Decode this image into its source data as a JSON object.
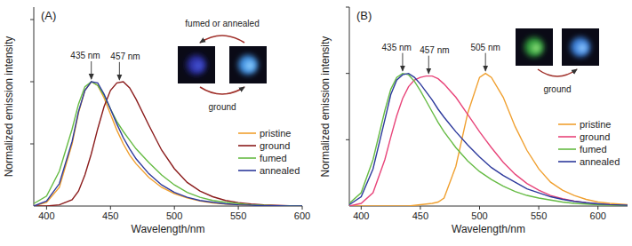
{
  "chart_data": [
    {
      "type": "line",
      "title": "(A)",
      "x_label": "Wavelength/nm",
      "y_label": "Normalized emission intensity",
      "x": [
        390,
        400,
        410,
        420,
        425,
        430,
        435,
        440,
        445,
        450,
        455,
        460,
        465,
        470,
        480,
        490,
        500,
        510,
        520,
        530,
        540,
        550,
        560,
        570,
        580,
        590,
        600
      ],
      "series": [
        {
          "name": "pristine",
          "color": "#f0a030",
          "values": [
            0.0,
            0.03,
            0.15,
            0.5,
            0.75,
            0.93,
            1.0,
            0.97,
            0.87,
            0.74,
            0.61,
            0.5,
            0.41,
            0.34,
            0.23,
            0.15,
            0.1,
            0.065,
            0.04,
            0.025,
            0.015,
            0.01,
            0.005,
            0.003,
            0.002,
            0.001,
            0.0
          ]
        },
        {
          "name": "ground",
          "color": "#8b1c1c",
          "values": [
            0.0,
            0.0,
            0.01,
            0.05,
            0.12,
            0.25,
            0.42,
            0.62,
            0.8,
            0.93,
            0.99,
            1.0,
            0.95,
            0.86,
            0.65,
            0.45,
            0.3,
            0.19,
            0.12,
            0.075,
            0.045,
            0.028,
            0.017,
            0.01,
            0.006,
            0.003,
            0.002
          ]
        },
        {
          "name": "fumed",
          "color": "#66bb44",
          "values": [
            0.02,
            0.08,
            0.28,
            0.62,
            0.82,
            0.96,
            1.0,
            0.97,
            0.89,
            0.78,
            0.68,
            0.6,
            0.53,
            0.46,
            0.35,
            0.25,
            0.17,
            0.11,
            0.07,
            0.045,
            0.03,
            0.02,
            0.01,
            0.006,
            0.003,
            0.002,
            0.001
          ]
        },
        {
          "name": "annealed",
          "color": "#2d3a9c",
          "values": [
            0.0,
            0.04,
            0.18,
            0.52,
            0.76,
            0.93,
            1.0,
            0.99,
            0.9,
            0.78,
            0.66,
            0.55,
            0.46,
            0.38,
            0.26,
            0.17,
            0.11,
            0.07,
            0.045,
            0.03,
            0.018,
            0.01,
            0.006,
            0.003,
            0.002,
            0.001,
            0.0
          ]
        }
      ],
      "xlim": [
        390,
        600
      ],
      "xticks": [
        400,
        450,
        500,
        550,
        600
      ],
      "ylim": [
        0,
        1.6
      ],
      "yticks": [
        0.5,
        1.0,
        1.5
      ],
      "tick_labels": "x",
      "legend": "right",
      "annotations": [
        {
          "text": "435 nm",
          "x": 435
        },
        {
          "text": "457 nm",
          "x": 457
        }
      ],
      "inset_labels": [
        "fumed or annealed",
        "ground"
      ]
    },
    {
      "type": "line",
      "title": "(B)",
      "x_label": "Wavelength/nm",
      "y_label": "Normalized emission intensity",
      "x": [
        390,
        400,
        410,
        420,
        425,
        430,
        435,
        440,
        445,
        450,
        455,
        460,
        465,
        470,
        480,
        490,
        500,
        505,
        510,
        520,
        530,
        540,
        550,
        560,
        570,
        580,
        590,
        600,
        610,
        625
      ],
      "series": [
        {
          "name": "pristine",
          "color": "#f0a030",
          "values": [
            0.0,
            0.0,
            0.0,
            0.0,
            0.0,
            0.0,
            0.0,
            0.0,
            0.005,
            0.01,
            0.015,
            0.02,
            0.03,
            0.06,
            0.3,
            0.7,
            0.97,
            1.0,
            0.97,
            0.82,
            0.6,
            0.42,
            0.28,
            0.18,
            0.12,
            0.08,
            0.05,
            0.03,
            0.02,
            0.01
          ]
        },
        {
          "name": "ground",
          "color": "#e8457a",
          "values": [
            0.0,
            0.02,
            0.1,
            0.35,
            0.52,
            0.68,
            0.81,
            0.9,
            0.95,
            0.97,
            0.98,
            0.98,
            0.96,
            0.92,
            0.82,
            0.69,
            0.56,
            0.5,
            0.44,
            0.33,
            0.24,
            0.17,
            0.12,
            0.08,
            0.055,
            0.037,
            0.025,
            0.016,
            0.01,
            0.005
          ]
        },
        {
          "name": "fumed",
          "color": "#66bb44",
          "values": [
            0.02,
            0.1,
            0.35,
            0.72,
            0.88,
            0.97,
            1.0,
            0.99,
            0.94,
            0.87,
            0.79,
            0.71,
            0.63,
            0.56,
            0.44,
            0.34,
            0.26,
            0.23,
            0.2,
            0.15,
            0.11,
            0.08,
            0.06,
            0.045,
            0.03,
            0.02,
            0.015,
            0.01,
            0.007,
            0.004
          ]
        },
        {
          "name": "annealed",
          "color": "#2d3a9c",
          "values": [
            0.01,
            0.07,
            0.28,
            0.65,
            0.84,
            0.95,
            0.99,
            1.0,
            0.97,
            0.92,
            0.86,
            0.8,
            0.73,
            0.67,
            0.56,
            0.46,
            0.37,
            0.33,
            0.29,
            0.23,
            0.18,
            0.13,
            0.1,
            0.07,
            0.05,
            0.035,
            0.025,
            0.017,
            0.011,
            0.006
          ]
        }
      ],
      "xlim": [
        390,
        625
      ],
      "xticks": [
        400,
        450,
        500,
        550,
        600
      ],
      "ylim": [
        0,
        1.5
      ],
      "yticks": [
        0.5,
        1.0,
        1.5
      ],
      "tick_labels": "x",
      "legend": "right",
      "annotations": [
        {
          "text": "435 nm",
          "x": 435
        },
        {
          "text": "457 nm",
          "x": 457
        },
        {
          "text": "505 nm",
          "x": 505
        }
      ],
      "inset_labels": [
        "ground"
      ]
    }
  ]
}
